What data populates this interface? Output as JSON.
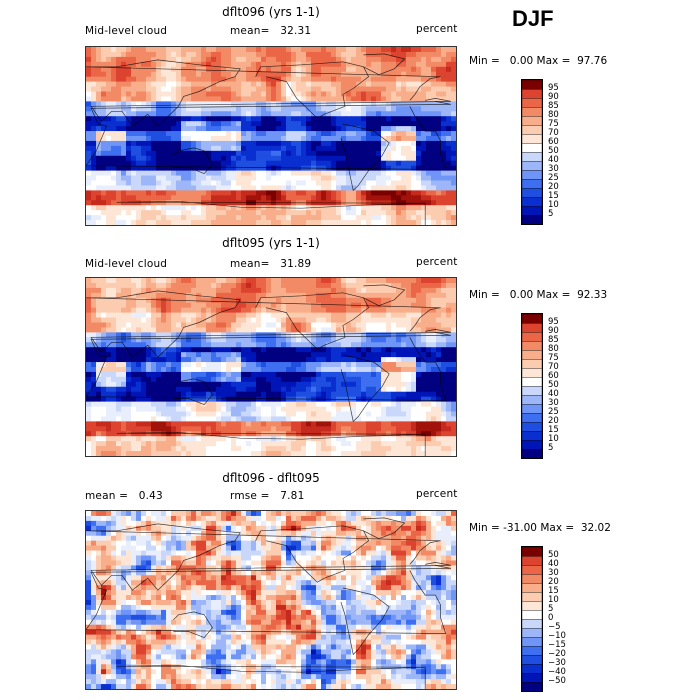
{
  "season": "DJF",
  "colors": {
    "blues": [
      "#000080",
      "#0015b8",
      "#0a2fd0",
      "#1f4fe0",
      "#3d6ff0",
      "#6f95f6",
      "#9cb6f8",
      "#c8d7fa",
      "#e8eefc"
    ],
    "neutral": "#ffffff",
    "reds": [
      "#fde6d6",
      "#fcccb0",
      "#f8ae8a",
      "#f28a66",
      "#ea6646",
      "#dc4430",
      "#c62a1c",
      "#a0120a",
      "#7a0000"
    ]
  },
  "panels": [
    {
      "title": "dflt096 (yrs 1-1)",
      "field_label": "Mid-level cloud",
      "stat_label": "mean=",
      "stat_value": "32.31",
      "units": "percent",
      "min_label": "Min =",
      "min_value": "0.00",
      "max_label": "Max =",
      "max_value": "97.76",
      "legend_levels": [
        "95",
        "90",
        "85",
        "80",
        "75",
        "70",
        "60",
        "50",
        "40",
        "30",
        "25",
        "20",
        "15",
        "10",
        "5"
      ]
    },
    {
      "title": "dflt095 (yrs 1-1)",
      "field_label": "Mid-level cloud",
      "stat_label": "mean=",
      "stat_value": "31.89",
      "units": "percent",
      "min_label": "Min =",
      "min_value": "0.00",
      "max_label": "Max =",
      "max_value": "92.33",
      "legend_levels": [
        "95",
        "90",
        "85",
        "80",
        "75",
        "70",
        "60",
        "50",
        "40",
        "30",
        "25",
        "20",
        "15",
        "10",
        "5"
      ]
    },
    {
      "title": "dflt096 - dflt095",
      "field_label": "mean =",
      "field_value": "0.43",
      "stat_label": "rmse =",
      "stat_value": "7.81",
      "units": "percent",
      "min_label": "Min =",
      "min_value": "-31.00",
      "max_label": "Max =",
      "max_value": "32.02",
      "legend_levels": [
        "50",
        "40",
        "30",
        "20",
        "15",
        "10",
        "5",
        "0",
        "−5",
        "−10",
        "−15",
        "−20",
        "−30",
        "−40",
        "−50"
      ]
    }
  ]
}
